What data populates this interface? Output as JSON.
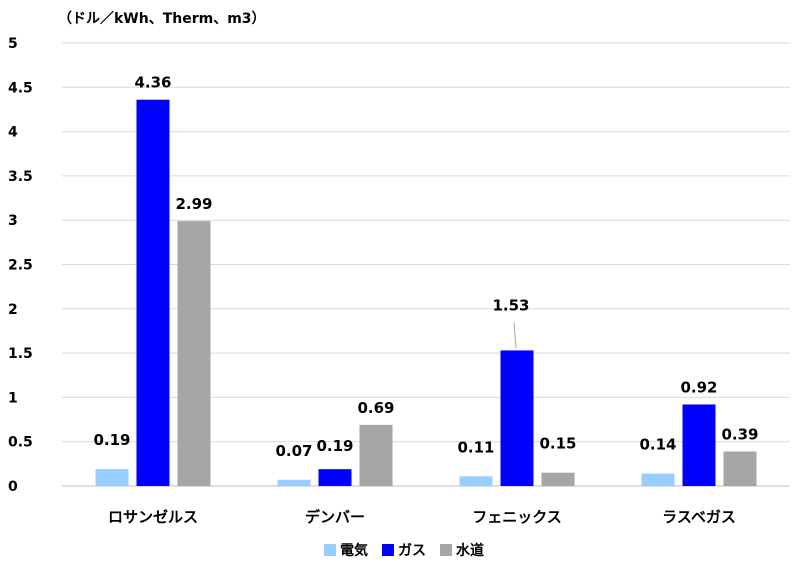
{
  "chart_data": {
    "type": "bar",
    "unit_label": "（ドル／kWh、Therm、m3）",
    "categories": [
      "ロサンゼルス",
      "デンバー",
      "フェニックス",
      "ラスベガス"
    ],
    "series": [
      {
        "name": "電気",
        "values": [
          0.19,
          0.07,
          0.11,
          0.14
        ],
        "labels": [
          "0.19",
          "0.07",
          "0.11",
          "0.14"
        ],
        "color": "#99ccff"
      },
      {
        "name": "ガス",
        "values": [
          4.36,
          0.19,
          1.53,
          0.92
        ],
        "labels": [
          "4.36",
          "0.19",
          "1.53",
          "0.92"
        ],
        "color": "#0000ff"
      },
      {
        "name": "水道",
        "values": [
          2.99,
          0.69,
          0.15,
          0.39
        ],
        "labels": [
          "2.99",
          "0.69",
          "0.15",
          "0.39"
        ],
        "color": "#a6a6a6"
      }
    ],
    "ylim": [
      0,
      5
    ],
    "yticks": [
      "0",
      "0.5",
      "1",
      "1.5",
      "2",
      "2.5",
      "3",
      "3.5",
      "4",
      "4.5",
      "5"
    ],
    "grid": true,
    "legend_position": "bottom"
  }
}
